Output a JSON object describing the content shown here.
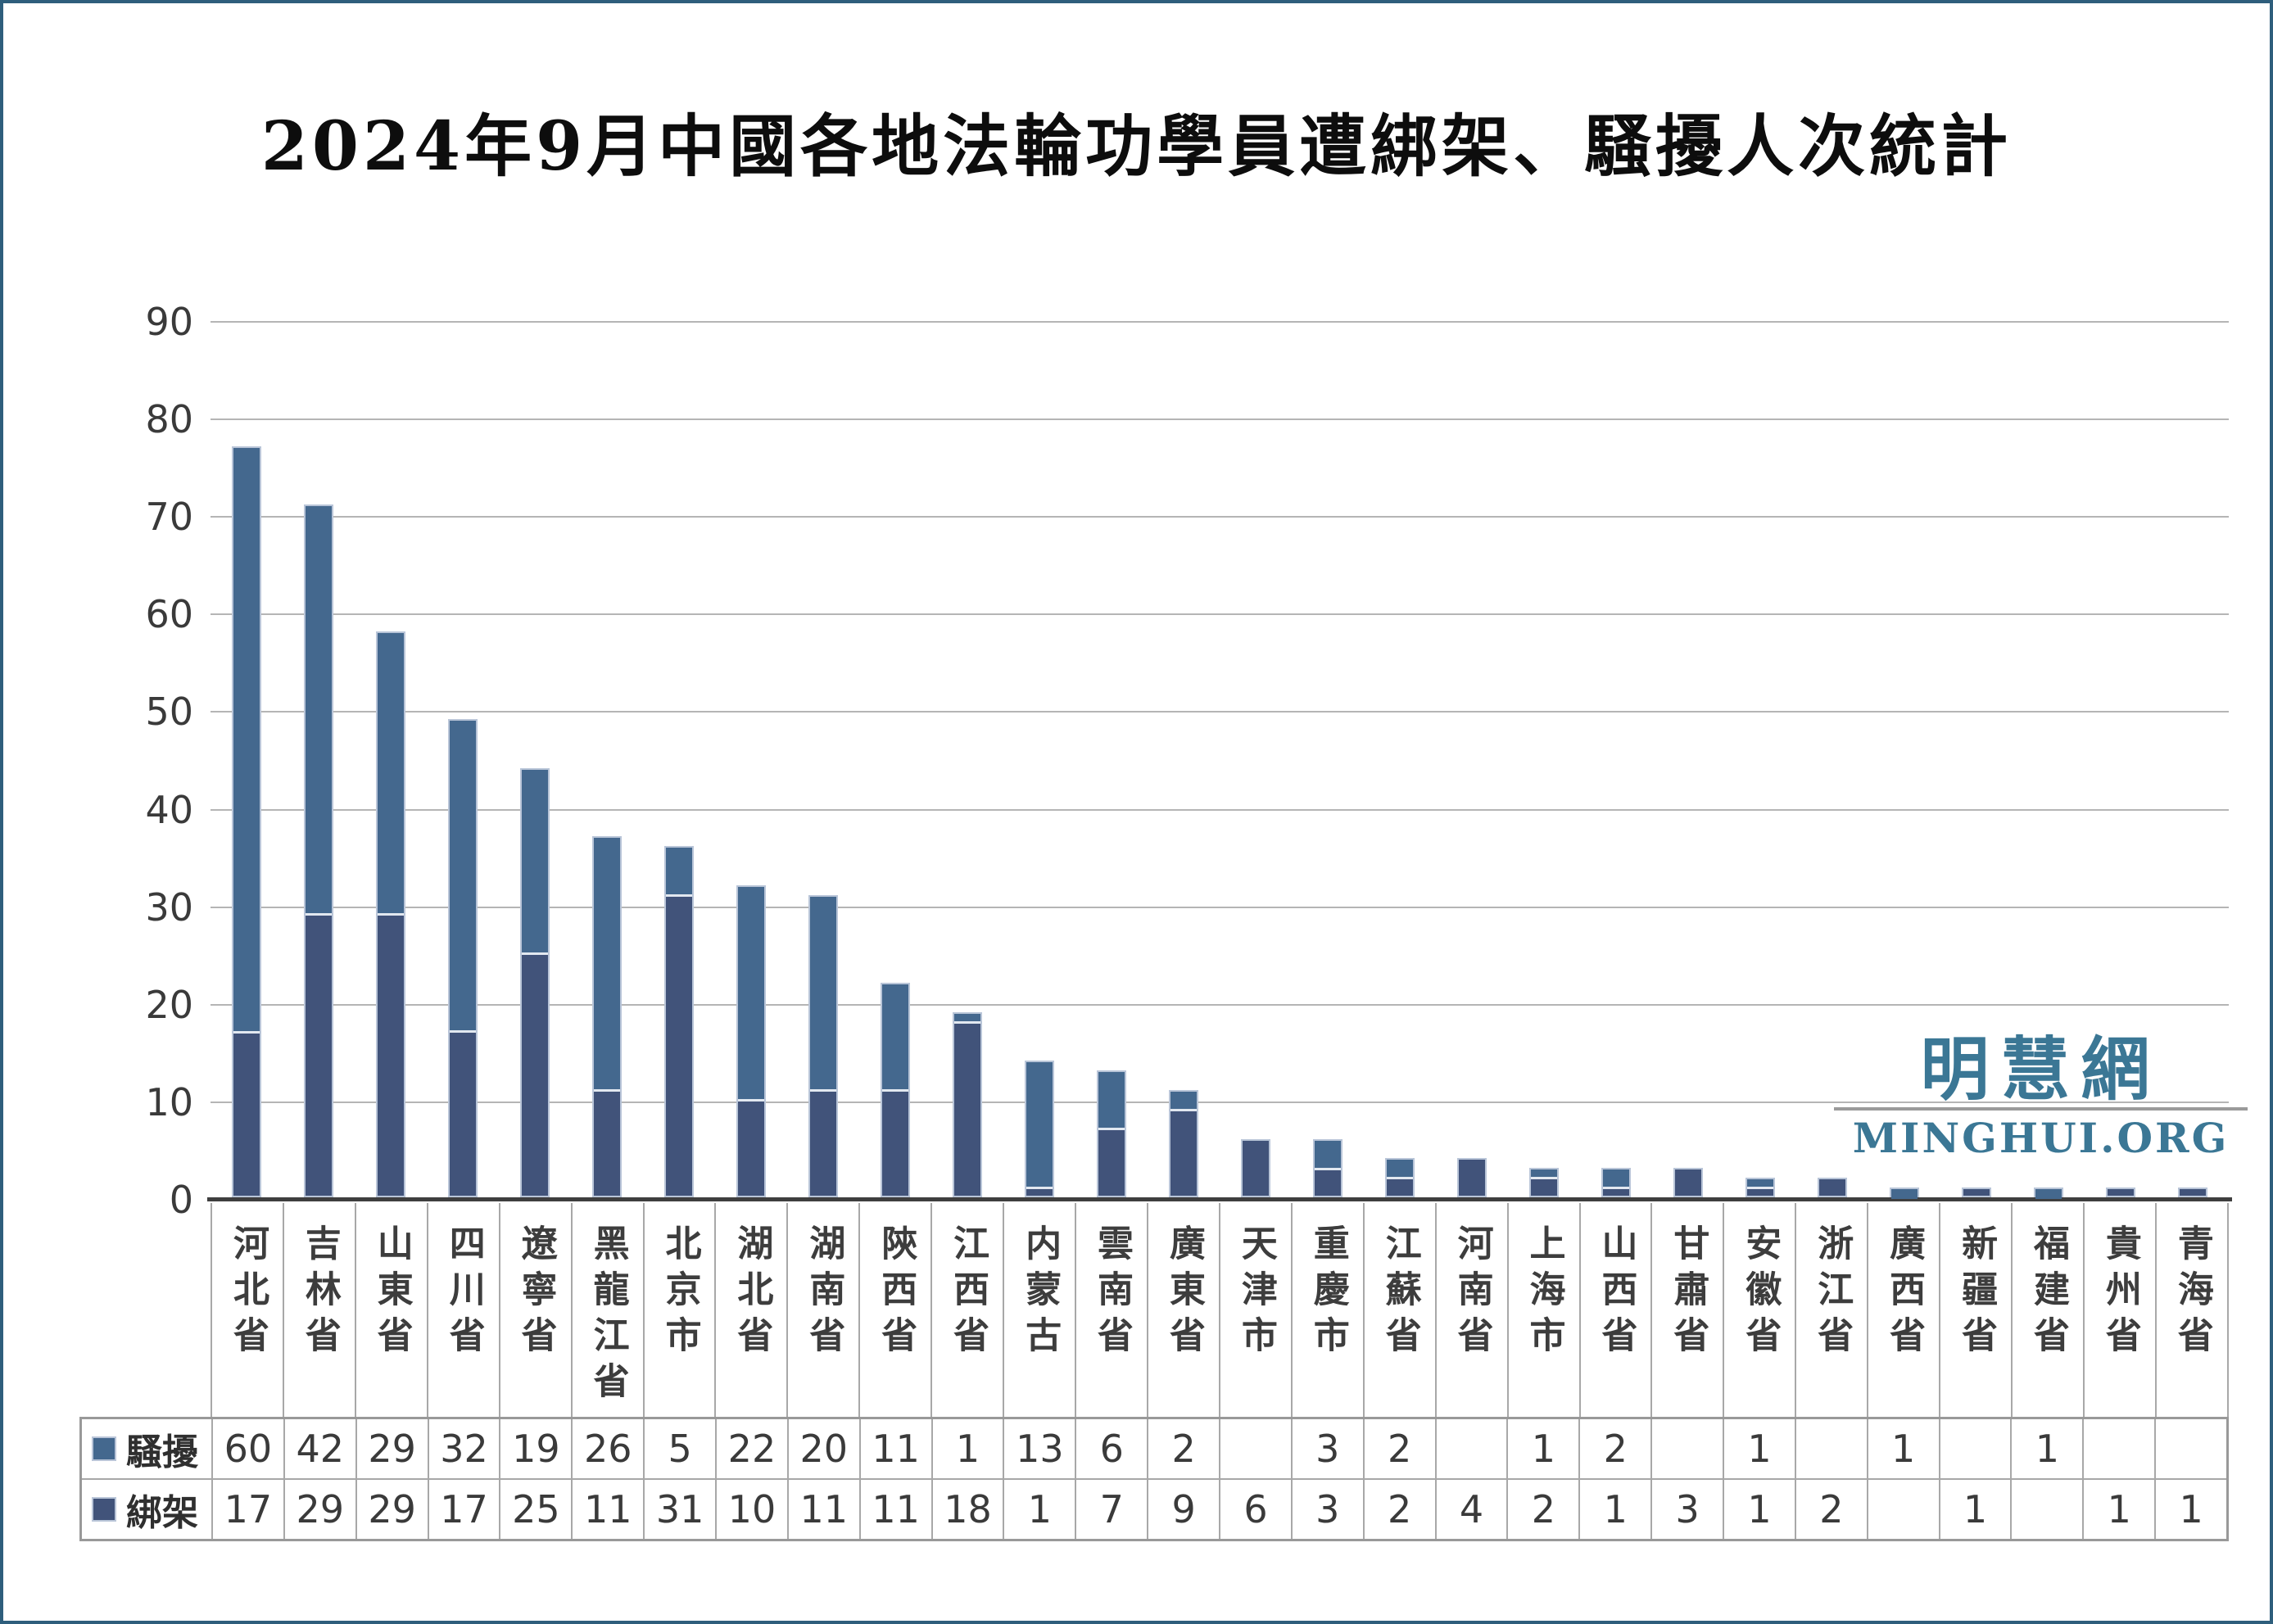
{
  "title": "2024年9月中國各地法輪功學員遭綁架、騷擾人次統計",
  "watermark": {
    "cjk": "明慧網",
    "latin": "MINGHUI.ORG"
  },
  "colors": {
    "harassment": "#44688E",
    "kidnapping": "#41537A",
    "bar_border": "#b9c5d8",
    "segment_divider": "#e2e8f0",
    "gridline": "#b5b5b5",
    "axis": "#3f3f3f",
    "table_border": "#a8a8a8",
    "text": "#3a3a3a",
    "logo": "#3b7795",
    "frame_border": "#2e5e7c"
  },
  "chart_data": {
    "type": "bar",
    "stacked": true,
    "title": "2024年9月中國各地法輪功學員遭綁架、騷擾人次統計",
    "categories": [
      "河北省",
      "吉林省",
      "山東省",
      "四川省",
      "遼寧省",
      "黑龍江省",
      "北京市",
      "湖北省",
      "湖南省",
      "陝西省",
      "江西省",
      "内蒙古",
      "雲南省",
      "廣東省",
      "天津市",
      "重慶市",
      "江蘇省",
      "河南省",
      "上海市",
      "山西省",
      "甘肅省",
      "安徽省",
      "浙江省",
      "廣西省",
      "新疆省",
      "福建省",
      "貴州省",
      "青海省"
    ],
    "series": [
      {
        "name": "騷擾",
        "values": [
          60,
          42,
          29,
          32,
          19,
          26,
          5,
          22,
          20,
          11,
          1,
          13,
          6,
          2,
          null,
          3,
          2,
          null,
          1,
          2,
          null,
          1,
          null,
          1,
          null,
          1,
          null,
          null
        ]
      },
      {
        "name": "綁架",
        "values": [
          17,
          29,
          29,
          17,
          25,
          11,
          31,
          10,
          11,
          11,
          18,
          1,
          7,
          9,
          6,
          3,
          2,
          4,
          2,
          1,
          3,
          1,
          2,
          null,
          1,
          null,
          1,
          1
        ]
      }
    ],
    "ylim": [
      0,
      90
    ],
    "ytick_interval": 10,
    "grid": true,
    "legend_position": "table-left",
    "xlabel": "",
    "ylabel": ""
  }
}
